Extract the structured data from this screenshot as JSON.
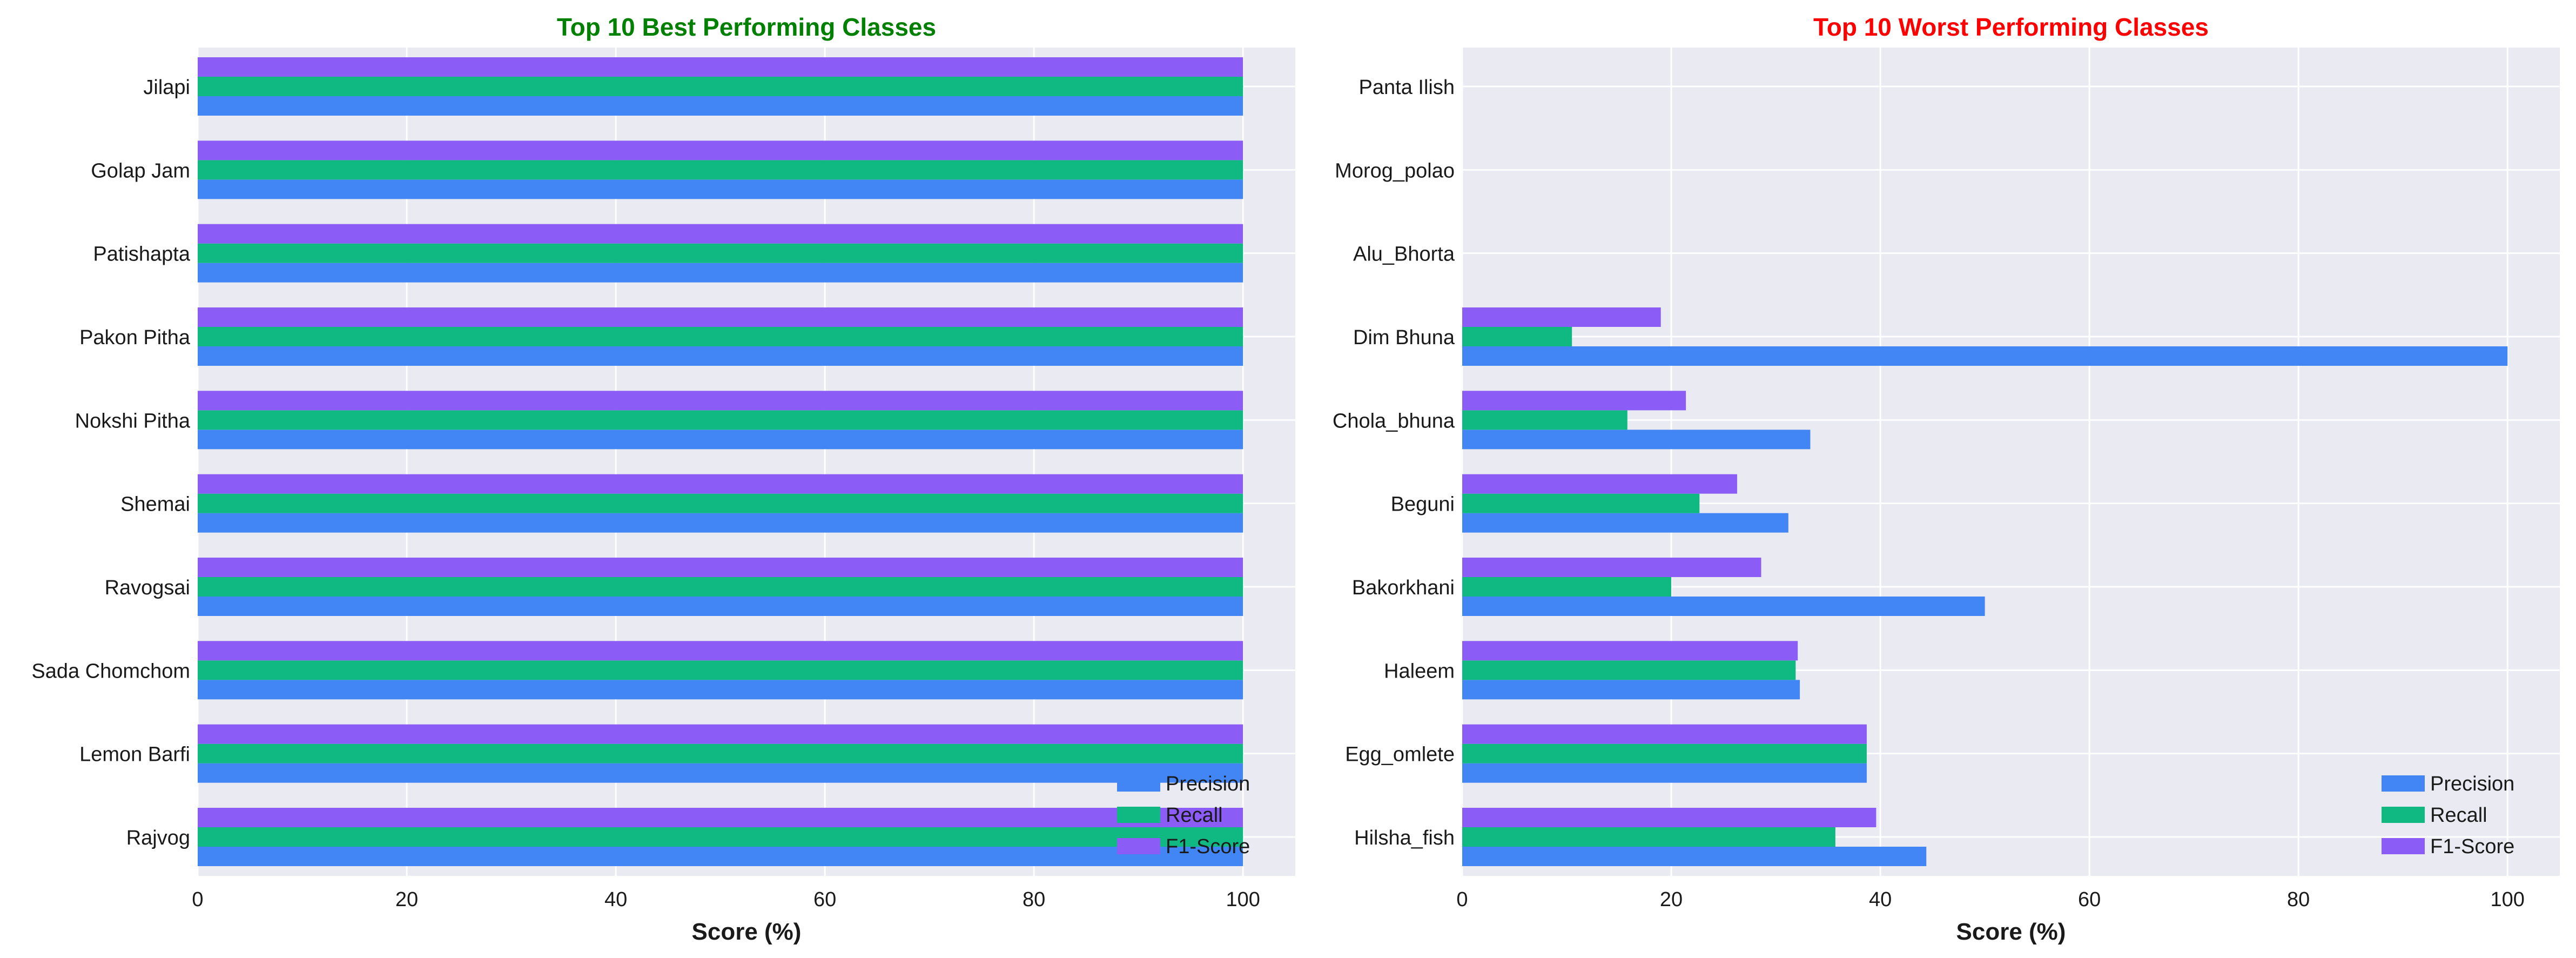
{
  "colors": {
    "precision": "#4285f4",
    "recall": "#10b981",
    "f1": "#8b5cf6",
    "plot_bg": "#eaeaf2",
    "grid": "#ffffff",
    "best_title": "#008000",
    "worst_title": "#ff0000",
    "text": "#1a1a1a"
  },
  "chart_data": [
    {
      "type": "bar",
      "orientation": "horizontal",
      "title": "Top 10 Best Performing Classes",
      "xlabel": "Score (%)",
      "ylabel": "",
      "xlim": [
        0,
        105
      ],
      "xticks": [
        0,
        20,
        40,
        60,
        80,
        100
      ],
      "grid": true,
      "legend": {
        "position": "bottom-right"
      },
      "categories": [
        "Jilapi",
        "Golap Jam",
        "Patishapta",
        "Pakon Pitha",
        "Nokshi Pitha",
        "Shemai",
        "Ravogsai",
        "Sada Chomchom",
        "Lemon Barfi",
        "Rajvog"
      ],
      "series": [
        {
          "name": "Precision",
          "values": [
            100,
            100,
            100,
            100,
            100,
            100,
            100,
            100,
            100,
            100
          ]
        },
        {
          "name": "Recall",
          "values": [
            100,
            100,
            100,
            100,
            100,
            100,
            100,
            100,
            100,
            100
          ]
        },
        {
          "name": "F1-Score",
          "values": [
            100,
            100,
            100,
            100,
            100,
            100,
            100,
            100,
            100,
            100
          ]
        }
      ]
    },
    {
      "type": "bar",
      "orientation": "horizontal",
      "title": "Top 10 Worst Performing Classes",
      "xlabel": "Score (%)",
      "ylabel": "",
      "xlim": [
        0,
        105
      ],
      "xticks": [
        0,
        20,
        40,
        60,
        80,
        100
      ],
      "grid": true,
      "legend": {
        "position": "bottom-right"
      },
      "categories": [
        "Panta Ilish",
        "Morog_polao",
        "Alu_Bhorta",
        "Dim Bhuna",
        "Chola_bhuna",
        "Beguni",
        "Bakorkhani",
        "Haleem",
        "Egg_omlete",
        "Hilsha_fish"
      ],
      "series": [
        {
          "name": "Precision",
          "values": [
            0,
            0,
            0,
            100,
            33.3,
            31.2,
            50,
            32.3,
            38.7,
            44.4
          ]
        },
        {
          "name": "Recall",
          "values": [
            0,
            0,
            0,
            10.5,
            15.8,
            22.7,
            20,
            31.9,
            38.7,
            35.7
          ]
        },
        {
          "name": "F1-Score",
          "values": [
            0,
            0,
            0,
            19,
            21.4,
            26.3,
            28.6,
            32.1,
            38.7,
            39.6
          ]
        }
      ]
    }
  ]
}
